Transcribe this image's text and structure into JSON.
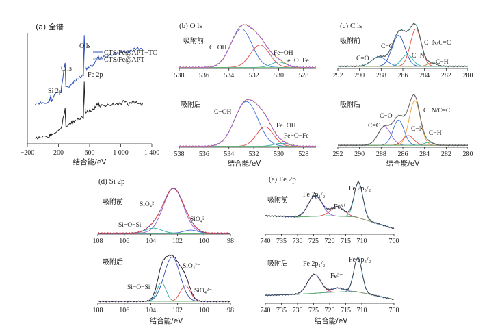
{
  "figure": {
    "panel_a": {
      "title": "(a) 全谱",
      "xlabel": "结合能/eV",
      "xticks": [
        "−200",
        "200",
        "600",
        "1 000",
        "1 400"
      ],
      "legend": [
        "CTS/Fe@APT−TC",
        "CTS/Fe@APT"
      ],
      "peak_labels": [
        "O ls",
        "C ls",
        "Fe 2p",
        "Si 2p"
      ]
    },
    "panel_b": {
      "title": "(b) O ls",
      "before_label": "吸附前",
      "after_label": "吸附后",
      "xlabel": "结合能/eV",
      "xticks": [
        "538",
        "536",
        "534",
        "532",
        "530",
        "528"
      ],
      "peak_labels": [
        "C−OH",
        "Fe−OH",
        "Fe−O−Fe"
      ]
    },
    "panel_c": {
      "title": "(c) C ls",
      "before_label": "吸附前",
      "after_label": "吸附后",
      "xlabel": "结合能/eV",
      "xticks": [
        "292",
        "290",
        "288",
        "286",
        "284",
        "282",
        "280"
      ],
      "peak_labels": [
        "C=O",
        "C−O",
        "C−N/C=C",
        "C−N",
        "C−H"
      ]
    },
    "panel_d": {
      "title": "(d) Si 2p",
      "before_label": "吸附前",
      "after_label": "吸附后",
      "xlabel": "结合能/eV",
      "xticks": [
        "108",
        "106",
        "104",
        "102",
        "100",
        "98"
      ],
      "peak_labels": [
        "SiO₄²⁻",
        "Si−O−Si",
        "SiO₄²⁻"
      ]
    },
    "panel_e": {
      "title": "(e) Fe 2p",
      "before_label": "吸附前",
      "after_label": "吸附后",
      "xlabel": "结合能/eV",
      "xticks": [
        "740",
        "735",
        "730",
        "725",
        "720",
        "715",
        "710",
        "700"
      ],
      "peak_labels": [
        "Fe 2p₁/₂",
        "Fe³⁺",
        "Fe 2p₃/₂"
      ]
    }
  },
  "chart_data": [
    {
      "type": "line",
      "id": "a",
      "title": "(a) 全谱",
      "xlabel": "结合能/eV",
      "xlim": [
        -200,
        1400
      ],
      "series": [
        {
          "name": "CTS/Fe@APT−TC",
          "color": "#2e4fb8",
          "x": [
            -100,
            0,
            80,
            100,
            110,
            150,
            230,
            285,
            295,
            340,
            400,
            470,
            520,
            531,
            545,
            600,
            650,
            711,
            725,
            760,
            900,
            1000,
            1050,
            1100,
            1150,
            1200,
            1300
          ],
          "y": [
            0.35,
            0.36,
            0.37,
            0.42,
            0.38,
            0.44,
            0.46,
            0.75,
            0.5,
            0.52,
            0.56,
            0.6,
            0.62,
            1.0,
            0.68,
            0.7,
            0.72,
            0.8,
            0.78,
            0.79,
            0.82,
            0.84,
            0.85,
            0.84,
            0.86,
            0.88,
            0.87
          ]
        },
        {
          "name": "CTS/Fe@APT",
          "color": "#222222",
          "x": [
            -100,
            0,
            80,
            100,
            110,
            150,
            230,
            285,
            295,
            340,
            400,
            470,
            520,
            531,
            545,
            600,
            650,
            711,
            725,
            760,
            900,
            1000,
            1050,
            1100,
            1150,
            1200,
            1300
          ],
          "y": [
            0.02,
            0.03,
            0.04,
            0.06,
            0.05,
            0.08,
            0.1,
            0.3,
            0.14,
            0.16,
            0.18,
            0.21,
            0.22,
            0.55,
            0.27,
            0.28,
            0.29,
            0.36,
            0.33,
            0.33,
            0.34,
            0.35,
            0.38,
            0.34,
            0.37,
            0.36,
            0.34
          ]
        }
      ]
    },
    {
      "type": "line",
      "id": "b1",
      "title": "(b) O ls 吸附前",
      "xlim": [
        538,
        527
      ],
      "reversed": true,
      "background": 0.02,
      "components": [
        {
          "label": "C−OH",
          "center": 533.0,
          "fwhm": 2.0,
          "height": 0.72,
          "color": "#3a6fd8"
        },
        {
          "label": "Fe−OH",
          "center": 531.5,
          "fwhm": 1.8,
          "height": 0.42,
          "color": "#e04848"
        },
        {
          "label": "Fe−O−Fe",
          "center": 530.0,
          "fwhm": 1.4,
          "height": 0.1,
          "color": "#2bb0a0"
        }
      ],
      "envelope_colors": [
        "#f0a030",
        "#9a5ad0"
      ]
    },
    {
      "type": "line",
      "id": "b2",
      "title": "(b) O ls 吸附后",
      "xlim": [
        538,
        527
      ],
      "reversed": true,
      "background": 0.02,
      "components": [
        {
          "label": "C−OH",
          "center": 532.6,
          "fwhm": 2.2,
          "height": 0.92,
          "color": "#3a6fd8"
        },
        {
          "label": "Fe−OH",
          "center": 531.1,
          "fwhm": 1.6,
          "height": 0.4,
          "color": "#e04848"
        },
        {
          "label": "Fe−O−Fe",
          "center": 529.8,
          "fwhm": 1.4,
          "height": 0.06,
          "color": "#2bb0a0"
        }
      ],
      "envelope_colors": [
        "#f0a030",
        "#9a5ad0"
      ]
    },
    {
      "type": "line",
      "id": "c1",
      "title": "(c) C ls 吸附前",
      "xlim": [
        292,
        280
      ],
      "reversed": true,
      "background": 0.04,
      "components": [
        {
          "label": "C=O",
          "center": 288.2,
          "fwhm": 1.6,
          "height": 0.18,
          "color": "#3a6fd8"
        },
        {
          "label": "C−O",
          "center": 286.4,
          "fwhm": 1.4,
          "height": 0.58,
          "color": "#2e4fb8"
        },
        {
          "label": "C−N/C=C",
          "center": 284.8,
          "fwhm": 1.2,
          "height": 0.7,
          "color": "#e04848"
        },
        {
          "label": "C−N",
          "center": 285.6,
          "fwhm": 1.2,
          "height": 0.22,
          "color": "#2bb0a0"
        },
        {
          "label": "C−H",
          "center": 283.3,
          "fwhm": 1.0,
          "height": 0.06,
          "color": "#c07a30"
        }
      ],
      "envelope_colors": [
        "#2bb0b8",
        "#555555"
      ]
    },
    {
      "type": "line",
      "id": "c2",
      "title": "(c) C ls 吸附后",
      "xlim": [
        292,
        280
      ],
      "reversed": true,
      "background": 0.04,
      "components": [
        {
          "label": "C=O",
          "center": 287.7,
          "fwhm": 1.4,
          "height": 0.38,
          "color": "#9a5ad0"
        },
        {
          "label": "C−O",
          "center": 286.4,
          "fwhm": 1.2,
          "height": 0.52,
          "color": "#3a6fd8"
        },
        {
          "label": "C−N/C=C",
          "center": 284.9,
          "fwhm": 1.2,
          "height": 0.92,
          "color": "#f0a030"
        },
        {
          "label": "C−N",
          "center": 285.5,
          "fwhm": 1.2,
          "height": 0.2,
          "color": "#e04848"
        },
        {
          "label": "C−H",
          "center": 283.6,
          "fwhm": 1.0,
          "height": 0.06,
          "color": "#2bb0a0"
        }
      ],
      "envelope_colors": [
        "#222222",
        "#777777"
      ]
    },
    {
      "type": "line",
      "id": "d1",
      "title": "(d) Si 2p 吸附前",
      "xlim": [
        108,
        98
      ],
      "reversed": true,
      "background": 0.02,
      "components": [
        {
          "label": "SiO₄²⁻",
          "center": 102.3,
          "fwhm": 1.8,
          "height": 0.88,
          "color": "#9a5ad0"
        },
        {
          "label": "Si−O−Si",
          "center": 103.8,
          "fwhm": 1.4,
          "height": 0.1,
          "color": "#2bb0a0"
        },
        {
          "label": "SiO₄²⁻",
          "center": 101.0,
          "fwhm": 1.2,
          "height": 0.06,
          "color": "#3a6fd8"
        }
      ],
      "envelope_colors": [
        "#2e4fb8",
        "#e04848"
      ]
    },
    {
      "type": "line",
      "id": "d2",
      "title": "(d) Si 2p 吸附后",
      "xlim": [
        108,
        98
      ],
      "reversed": true,
      "background": 0.04,
      "components": [
        {
          "label": "SiO₄²⁻",
          "center": 102.4,
          "fwhm": 1.4,
          "height": 0.9,
          "color": "#2e4fb8"
        },
        {
          "label": "Si−O−Si",
          "center": 103.2,
          "fwhm": 0.8,
          "height": 0.38,
          "color": "#2bb0a0"
        },
        {
          "label": "SiO₄²⁻",
          "center": 101.4,
          "fwhm": 0.9,
          "height": 0.32,
          "color": "#e04848"
        }
      ],
      "envelope_colors": [
        "#9a5ad0",
        "#222222"
      ]
    },
    {
      "type": "line",
      "id": "e1",
      "title": "(e) Fe 2p 吸附前",
      "xlim": [
        740,
        700
      ],
      "reversed": true,
      "background_curve": [
        [
          740,
          0.32
        ],
        [
          730,
          0.3
        ],
        [
          720,
          0.32
        ],
        [
          712,
          0.3
        ],
        [
          700,
          0.1
        ]
      ],
      "components": [
        {
          "label": "Fe 2p₁/₂",
          "center": 724.5,
          "fwhm": 5.0,
          "height": 0.36,
          "color": "#9a5ad0"
        },
        {
          "label": "Fe³⁺",
          "center": 717.5,
          "fwhm": 5.0,
          "height": 0.16,
          "color": "#e04848"
        },
        {
          "label": "Fe 2p₃/₂",
          "center": 711.0,
          "fwhm": 3.2,
          "height": 0.62,
          "color": "#2bb0a0"
        }
      ],
      "envelope_colors": [
        "#3a6fd8",
        "#444444"
      ]
    },
    {
      "type": "line",
      "id": "e2",
      "title": "(e) Fe 2p 吸附后",
      "xlim": [
        740,
        700
      ],
      "reversed": true,
      "background_curve": [
        [
          740,
          0.16
        ],
        [
          730,
          0.18
        ],
        [
          720,
          0.22
        ],
        [
          712,
          0.24
        ],
        [
          700,
          0.08
        ]
      ],
      "components": [
        {
          "label": "Fe 2p₁/₂",
          "center": 724.8,
          "fwhm": 4.8,
          "height": 0.38,
          "color": "#e04848"
        },
        {
          "label": "Fe³⁺",
          "center": 717.5,
          "fwhm": 4.5,
          "height": 0.08,
          "color": "#9a5ad0"
        },
        {
          "label": "Fe 2p₃/₂",
          "center": 711.2,
          "fwhm": 3.0,
          "height": 0.68,
          "color": "#2bb0a0"
        }
      ],
      "envelope_colors": [
        "#3a6fd8",
        "#444444"
      ]
    }
  ]
}
